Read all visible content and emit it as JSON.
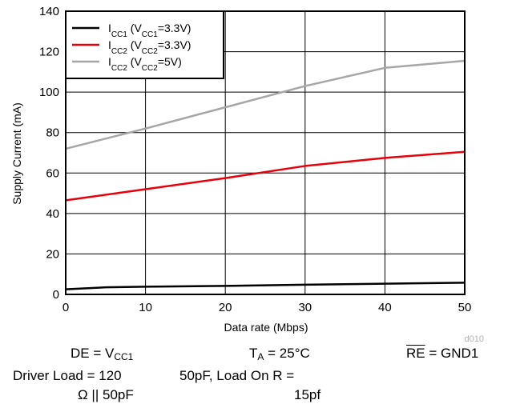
{
  "chart_data": {
    "type": "line",
    "xlabel": "Data rate (Mbps)",
    "ylabel": "Supply Current (mA)",
    "xlim": [
      0,
      50
    ],
    "ylim": [
      0,
      140
    ],
    "x_ticks": [
      "0",
      "10",
      "20",
      "30",
      "40",
      "50"
    ],
    "y_ticks": [
      "0",
      "20",
      "40",
      "60",
      "80",
      "100",
      "120",
      "140"
    ],
    "grid": true,
    "legend_position": "top-left",
    "series": [
      {
        "name_parts": {
          "base": "I",
          "sub": "CC1",
          "mid": " (V",
          "sub2": "CC1",
          "tail": "=3.3V)"
        },
        "color": "#000000",
        "x": [
          0,
          5,
          10,
          20,
          30,
          40,
          50
        ],
        "y": [
          2.5,
          3.5,
          3.8,
          4.2,
          4.8,
          5.3,
          5.8
        ]
      },
      {
        "name_parts": {
          "base": "I",
          "sub": "CC2",
          "mid": " (V",
          "sub2": "CC2",
          "tail": "=3.3V)"
        },
        "color": "#e8000b",
        "x": [
          0,
          10,
          20,
          30,
          40,
          50
        ],
        "y": [
          46.5,
          52,
          57.5,
          63.5,
          67.5,
          70.5
        ]
      },
      {
        "name_parts": {
          "base": "I",
          "sub": "CC2",
          "mid": " (V",
          "sub2": "CC2",
          "tail": "=5V)"
        },
        "color": "#a6a6a6",
        "x": [
          0,
          10,
          20,
          30,
          40,
          50
        ],
        "y": [
          72,
          82,
          92.5,
          103,
          112,
          115.5
        ]
      }
    ],
    "annotations": {
      "code": "d010"
    }
  },
  "conditions": {
    "de": {
      "pre": "DE = V",
      "sub": "CC1"
    },
    "ta": {
      "pre": "T",
      "sub": "A",
      "post": " = 25°C"
    },
    "re": {
      "over": "RE",
      "post": " = GND1"
    },
    "load_left_1": "Driver Load = 120",
    "load_left_2": "Ω || 50pF",
    "load_mid_1": "50pF, Load On R =",
    "load_mid_2": "15pf"
  }
}
